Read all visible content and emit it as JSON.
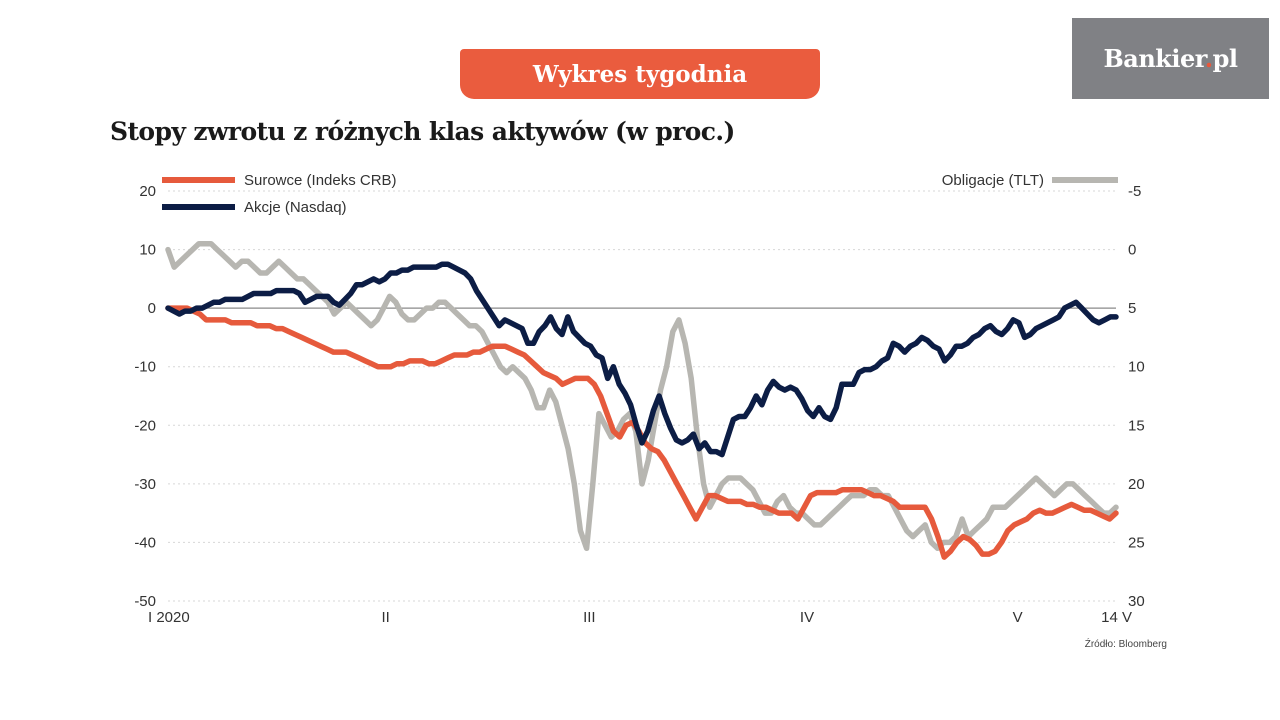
{
  "banner": {
    "label": "Wykres tygodnia"
  },
  "logo": {
    "text": "Bankier",
    "dot": ".",
    "tld": "pl"
  },
  "chart_data": {
    "type": "line",
    "title": "Stopy zwrotu z różnych klas aktywów (w proc.)",
    "source": "Źródło: Bloomberg",
    "x_tick_labels": [
      "I 2020",
      "II",
      "III",
      "IV",
      "V",
      "14 V"
    ],
    "x_tick_weeks": [
      0,
      31,
      60,
      91,
      121,
      135
    ],
    "y_left": {
      "ticks": [
        20,
        10,
        0,
        -10,
        -20,
        -30,
        -40,
        -50
      ],
      "range": [
        -50,
        20
      ]
    },
    "y_right": {
      "ticks": [
        -5,
        0,
        5,
        10,
        15,
        20,
        25,
        30
      ],
      "range": [
        -5,
        30
      ],
      "inverted": true
    },
    "series": [
      {
        "name": "Surowce (Indeks CRB)",
        "axis": "left",
        "color": "#e65a3c",
        "values": [
          0,
          0,
          0,
          0,
          -0.5,
          -1,
          -2,
          -2,
          -2,
          -2,
          -2.5,
          -2.5,
          -2.5,
          -2.5,
          -3,
          -3,
          -3,
          -3.5,
          -3.5,
          -4,
          -4.5,
          -5,
          -5.5,
          -6,
          -6.5,
          -7,
          -7.5,
          -7.5,
          -7.5,
          -8,
          -8.5,
          -9,
          -9.5,
          -10,
          -10,
          -10,
          -9.5,
          -9.5,
          -9,
          -9,
          -9,
          -9.5,
          -9.5,
          -9,
          -8.5,
          -8,
          -8,
          -8,
          -7.5,
          -7.5,
          -7,
          -6.5,
          -6.5,
          -6.5,
          -7,
          -7.5,
          -8,
          -9,
          -10,
          -11,
          -11.5,
          -12,
          -13,
          -12.5,
          -12,
          -12,
          -12,
          -13,
          -15,
          -18,
          -21,
          -22,
          -20,
          -19.5,
          -21,
          -23,
          -24,
          -24.5,
          -26,
          -28,
          -30,
          -32,
          -34,
          -36,
          -34,
          -32,
          -32,
          -32.5,
          -33,
          -33,
          -33,
          -33.5,
          -33.5,
          -34,
          -34,
          -34.5,
          -35,
          -35,
          -35,
          -36,
          -34,
          -32,
          -31.5,
          -31.5,
          -31.5,
          -31.5,
          -31,
          -31,
          -31,
          -31,
          -31.5,
          -32,
          -32,
          -32.5,
          -33,
          -34,
          -34,
          -34,
          -34,
          -34,
          -36,
          -39,
          -42.5,
          -41.5,
          -40,
          -39,
          -39.5,
          -40.5,
          -42,
          -42,
          -41.5,
          -40,
          -38,
          -37,
          -36.5,
          -36,
          -35,
          -34.5,
          -35,
          -35,
          -34.5,
          -34,
          -33.5,
          -34,
          -34.5,
          -34.5,
          -35,
          -35.5,
          -36,
          -35
        ]
      },
      {
        "name": "Akcje (Nasdaq)",
        "axis": "left",
        "color": "#0c1d45",
        "values": [
          0,
          -0.5,
          -1,
          -0.5,
          -0.5,
          0,
          0,
          0.5,
          1,
          1,
          1.5,
          1.5,
          1.5,
          1.5,
          2,
          2.5,
          2.5,
          2.5,
          2.5,
          3,
          3,
          3,
          3,
          2.5,
          1,
          1.5,
          2,
          2,
          2,
          1,
          0.5,
          1.5,
          2.5,
          4,
          4,
          4.5,
          5,
          4.5,
          5,
          6,
          6,
          6.5,
          6.5,
          7,
          7,
          7,
          7,
          7,
          7.5,
          7.5,
          7,
          6.5,
          6,
          5,
          3,
          1.5,
          0,
          -1.5,
          -3,
          -2,
          -2.5,
          -3,
          -3.5,
          -6,
          -6,
          -4,
          -3,
          -1.5,
          -3.5,
          -4.5,
          -1.5,
          -4,
          -5,
          -6,
          -6.5,
          -8,
          -8.5,
          -12,
          -10,
          -13,
          -14.5,
          -16.5,
          -20,
          -23,
          -21,
          -17.5,
          -15,
          -18,
          -20.5,
          -22.5,
          -23,
          -22.5,
          -21.5,
          -24,
          -23,
          -24.5,
          -24.5,
          -25,
          -22,
          -19,
          -18.5,
          -18.5,
          -17,
          -15,
          -16.5,
          -14,
          -12.5,
          -13.5,
          -14,
          -13.5,
          -14,
          -15.5,
          -17.5,
          -18.5,
          -17,
          -18.5,
          -19,
          -17,
          -13,
          -13,
          -13,
          -11,
          -10.5,
          -10.5,
          -10,
          -9,
          -8.5,
          -6,
          -6.5,
          -7.5,
          -6.5,
          -6,
          -5,
          -5.5,
          -6.5,
          -7,
          -9,
          -8,
          -6.5,
          -6.5,
          -6,
          -5,
          -4.5,
          -3.5,
          -3,
          -4,
          -4.5,
          -3.5,
          -2,
          -2.5,
          -5,
          -4.5,
          -3.5,
          -3,
          -2.5,
          -2,
          -1.5,
          0,
          0.5,
          1,
          0,
          -1,
          -2,
          -2.5,
          -2,
          -1.5,
          -1.5
        ]
      },
      {
        "name": "Obligacje (TLT)",
        "axis": "right",
        "color": "#b7b6b1",
        "values": [
          0,
          1.5,
          1,
          0.5,
          0,
          -0.5,
          -0.5,
          -0.5,
          0,
          0.5,
          1,
          1.5,
          1,
          1,
          1.5,
          2,
          2,
          1.5,
          1,
          1.5,
          2,
          2.5,
          2.5,
          3,
          3.5,
          4,
          4.5,
          5.5,
          5,
          4.5,
          5,
          5.5,
          6,
          6.5,
          6,
          5,
          4,
          4.5,
          5.5,
          6,
          6,
          5.5,
          5,
          5,
          4.5,
          4.5,
          5,
          5.5,
          6,
          6.5,
          6.5,
          7,
          8,
          9,
          10,
          10.5,
          10,
          10.5,
          11,
          12,
          13.5,
          13.5,
          12,
          13,
          15,
          17,
          20,
          24,
          25.5,
          20,
          14,
          15,
          16,
          15.5,
          14.5,
          14,
          15.5,
          20,
          18,
          15,
          12,
          10,
          7,
          6,
          8,
          11,
          16,
          20,
          22,
          21,
          20,
          19.5,
          19.5,
          19.5,
          20,
          20.5,
          21.5,
          22.5,
          22.5,
          21.5,
          21,
          22,
          22.5,
          22.5,
          23,
          23.5,
          23.5,
          23,
          22.5,
          22,
          21.5,
          21,
          21,
          21,
          20.5,
          20.5,
          21,
          21,
          22,
          23,
          24,
          24.5,
          24,
          23.5,
          25,
          25.5,
          25,
          25,
          24.5,
          23,
          24.5,
          24,
          23.5,
          23,
          22,
          22,
          22,
          21.5,
          21,
          20.5,
          20,
          19.5,
          20,
          20.5,
          21,
          20.5,
          20,
          20,
          20.5,
          21,
          21.5,
          22,
          22.5,
          22.5,
          22
        ]
      }
    ]
  }
}
